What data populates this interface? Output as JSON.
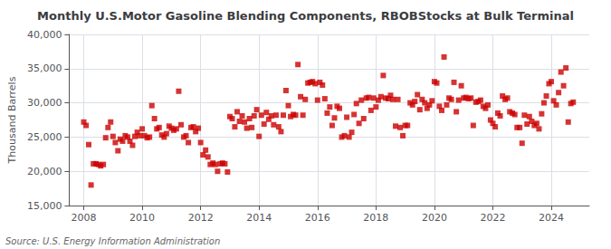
{
  "chart_data": {
    "type": "scatter",
    "title": "Monthly U.S.Motor Gasoline Blending Components, RBOBStocks at Bulk Terminal",
    "y_label": "Thousand Barrels",
    "annotations": [
      "Source: U.S. Energy Information Administration"
    ],
    "color": "#cc0000",
    "marker": "square",
    "grid": true,
    "xlim": [
      2007.5,
      2025.3
    ],
    "xticks": [
      2008,
      2010,
      2012,
      2014,
      2016,
      2018,
      2020,
      2022,
      2024
    ],
    "ylim": [
      15000,
      40000
    ],
    "yticks": [
      {
        "value": 15000,
        "label": "15,000"
      },
      {
        "value": 20000,
        "label": "20,000"
      },
      {
        "value": 25000,
        "label": "25,000"
      },
      {
        "value": 30000,
        "label": "30,000"
      },
      {
        "value": 35000,
        "label": "35,000"
      },
      {
        "value": 40000,
        "label": "40,000"
      }
    ],
    "x": [
      2008.0,
      2008.08,
      2008.17,
      2008.25,
      2008.33,
      2008.42,
      2008.5,
      2008.58,
      2008.67,
      2008.75,
      2008.83,
      2008.92,
      2009.0,
      2009.08,
      2009.17,
      2009.25,
      2009.33,
      2009.42,
      2009.5,
      2009.58,
      2009.67,
      2009.75,
      2009.83,
      2009.92,
      2010.0,
      2010.08,
      2010.17,
      2010.25,
      2010.33,
      2010.42,
      2010.5,
      2010.58,
      2010.67,
      2010.75,
      2010.83,
      2010.92,
      2011.0,
      2011.08,
      2011.17,
      2011.25,
      2011.33,
      2011.42,
      2011.5,
      2011.58,
      2011.67,
      2011.75,
      2011.83,
      2011.92,
      2012.0,
      2012.08,
      2012.17,
      2012.25,
      2012.33,
      2012.42,
      2012.5,
      2012.58,
      2012.67,
      2012.75,
      2012.83,
      2012.92,
      2013.0,
      2013.08,
      2013.17,
      2013.25,
      2013.33,
      2013.42,
      2013.5,
      2013.58,
      2013.67,
      2013.75,
      2013.83,
      2013.92,
      2014.0,
      2014.08,
      2014.17,
      2014.25,
      2014.33,
      2014.42,
      2014.5,
      2014.58,
      2014.67,
      2014.75,
      2014.83,
      2014.92,
      2015.0,
      2015.08,
      2015.17,
      2015.25,
      2015.33,
      2015.42,
      2015.5,
      2015.58,
      2015.67,
      2015.75,
      2015.83,
      2015.92,
      2016.0,
      2016.08,
      2016.17,
      2016.25,
      2016.33,
      2016.42,
      2016.5,
      2016.58,
      2016.67,
      2016.75,
      2016.83,
      2016.92,
      2017.0,
      2017.08,
      2017.17,
      2017.25,
      2017.33,
      2017.42,
      2017.5,
      2017.58,
      2017.67,
      2017.75,
      2017.83,
      2017.92,
      2018.0,
      2018.08,
      2018.17,
      2018.25,
      2018.33,
      2018.42,
      2018.5,
      2018.58,
      2018.67,
      2018.75,
      2018.83,
      2018.92,
      2019.0,
      2019.08,
      2019.17,
      2019.25,
      2019.33,
      2019.42,
      2019.5,
      2019.58,
      2019.67,
      2019.75,
      2019.83,
      2019.92,
      2020.0,
      2020.08,
      2020.17,
      2020.25,
      2020.33,
      2020.42,
      2020.5,
      2020.58,
      2020.67,
      2020.75,
      2020.83,
      2020.92,
      2021.0,
      2021.08,
      2021.17,
      2021.25,
      2021.33,
      2021.42,
      2021.5,
      2021.58,
      2021.67,
      2021.75,
      2021.83,
      2021.92,
      2022.0,
      2022.08,
      2022.17,
      2022.25,
      2022.33,
      2022.42,
      2022.5,
      2022.58,
      2022.67,
      2022.75,
      2022.83,
      2022.92,
      2023.0,
      2023.08,
      2023.17,
      2023.25,
      2023.33,
      2023.42,
      2023.5,
      2023.58,
      2023.67,
      2023.75,
      2023.83,
      2023.92,
      2024.0,
      2024.08,
      2024.17,
      2024.25,
      2024.33,
      2024.42,
      2024.5,
      2024.58,
      2024.67,
      2024.75
    ],
    "values": [
      27200,
      26700,
      23900,
      18000,
      21100,
      21100,
      21000,
      20800,
      21000,
      24900,
      26400,
      27200,
      25100,
      24200,
      23000,
      24700,
      24400,
      25200,
      25000,
      24400,
      23800,
      25100,
      25700,
      25200,
      26200,
      25200,
      24900,
      25000,
      29600,
      27700,
      26200,
      26400,
      25300,
      25000,
      25500,
      26600,
      26300,
      26000,
      26200,
      31700,
      26800,
      25000,
      25200,
      24200,
      26400,
      26500,
      25800,
      26300,
      24200,
      22400,
      23100,
      22100,
      21000,
      21200,
      21000,
      20000,
      21100,
      21200,
      21100,
      19900,
      28000,
      27700,
      26500,
      28700,
      27300,
      28100,
      27200,
      26300,
      27700,
      26400,
      28100,
      29000,
      25100,
      28200,
      26900,
      28600,
      27600,
      28100,
      26800,
      28200,
      26500,
      25800,
      28200,
      31800,
      29600,
      28000,
      28300,
      28200,
      35600,
      30900,
      28200,
      30500,
      32900,
      33000,
      33100,
      32800,
      30400,
      33000,
      32600,
      30600,
      28500,
      29400,
      26700,
      27800,
      29500,
      29200,
      25000,
      25200,
      27900,
      25000,
      25700,
      28300,
      29900,
      27000,
      30400,
      27700,
      30700,
      30800,
      28900,
      30700,
      29400,
      30400,
      30900,
      34000,
      30700,
      30600,
      31100,
      30500,
      26600,
      30500,
      26400,
      25200,
      26700,
      26700,
      30000,
      29700,
      30200,
      31200,
      29000,
      30500,
      30000,
      29200,
      29700,
      30300,
      33100,
      32900,
      29500,
      28900,
      36700,
      29700,
      30700,
      30500,
      33000,
      28700,
      30400,
      32500,
      30700,
      30800,
      30600,
      30700,
      26700,
      30100,
      30200,
      30400,
      29500,
      29200,
      29700,
      27500,
      27000,
      26500,
      28500,
      28100,
      31000,
      30500,
      30700,
      28700,
      28500,
      28300,
      26400,
      26400,
      24100,
      28200,
      26900,
      28000,
      27300,
      26700,
      27000,
      26200,
      28400,
      30000,
      31000,
      32800,
      33100,
      30300,
      29700,
      31500,
      34500,
      32500,
      35100,
      27200,
      29900,
      30100
    ]
  }
}
